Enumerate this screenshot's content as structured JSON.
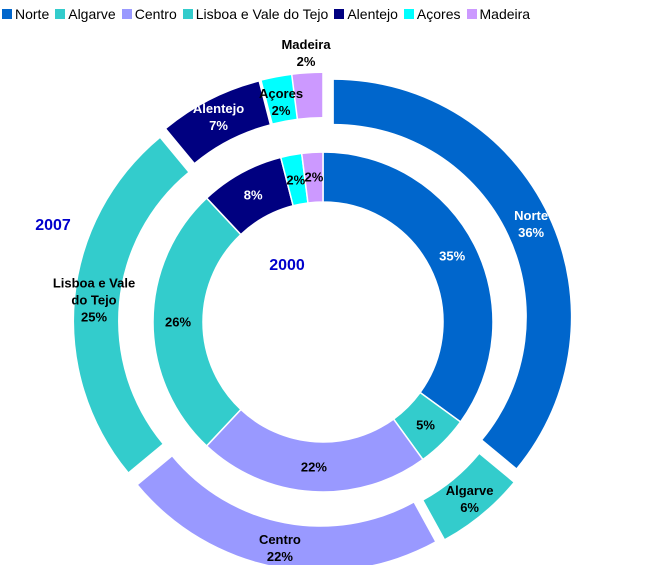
{
  "chart_data": {
    "type": "donut",
    "categories": [
      "Norte",
      "Algarve",
      "Centro",
      "Lisboa e Vale do Tejo",
      "Alentejo",
      "Açores",
      "Madeira"
    ],
    "colors": [
      "#0066cc",
      "#33cccc",
      "#9999ff",
      "#33cccc",
      "#000080",
      "#00ffff",
      "#cc99ff"
    ],
    "series": [
      {
        "name": "2000",
        "values": [
          35,
          5,
          22,
          26,
          8,
          2,
          2
        ],
        "value_labels": [
          "35%",
          "5%",
          "22%",
          "26%",
          "8%",
          "2%",
          "2%"
        ]
      },
      {
        "name": "2007",
        "values": [
          36,
          6,
          22,
          25,
          7,
          2,
          2
        ],
        "value_labels": [
          "36%",
          "6%",
          "22%",
          "25%",
          "7%",
          "2%",
          "2%"
        ]
      }
    ],
    "legend": "top"
  }
}
